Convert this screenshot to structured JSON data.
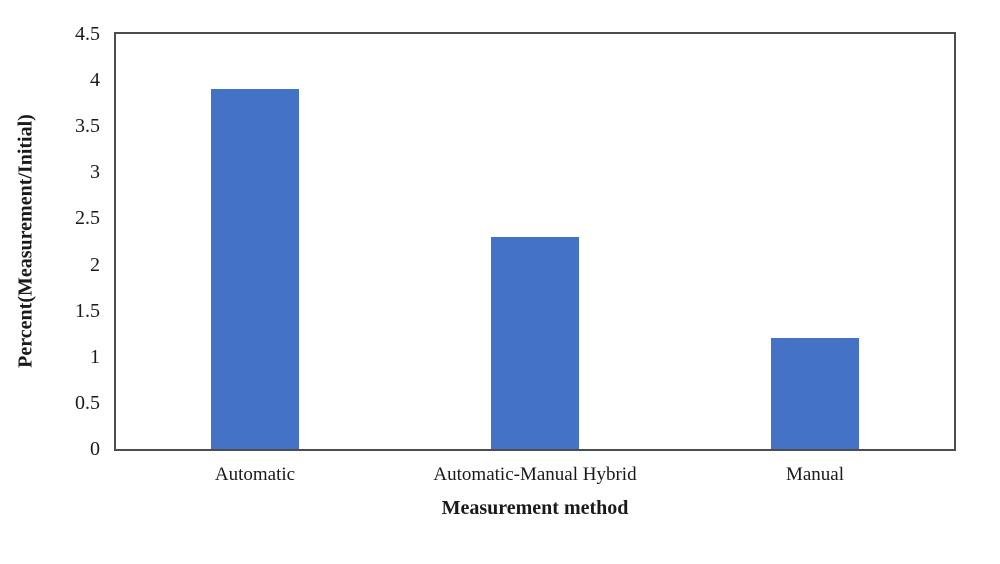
{
  "chart_data": {
    "type": "bar",
    "title": "",
    "categories": [
      "Automatic",
      "Automatic-Manual Hybrid",
      "Manual"
    ],
    "values": [
      3.9,
      2.3,
      1.2
    ],
    "xlabel": "Measurement method",
    "ylabel": "Percent(Measurement/Initial)",
    "ylim": [
      0,
      4.5
    ],
    "ytick_step": 0.5,
    "ytick_labels": [
      "4.5",
      "4",
      "3.5",
      "3",
      "2.5",
      "2",
      "1.5",
      "1",
      "0.5",
      "0"
    ],
    "grid": false,
    "legend": false,
    "bar_color": "#4472C4",
    "axis_color": "#4D4D4D",
    "text_color": "#1A1A1A",
    "background_color": "#FFFFFF"
  }
}
